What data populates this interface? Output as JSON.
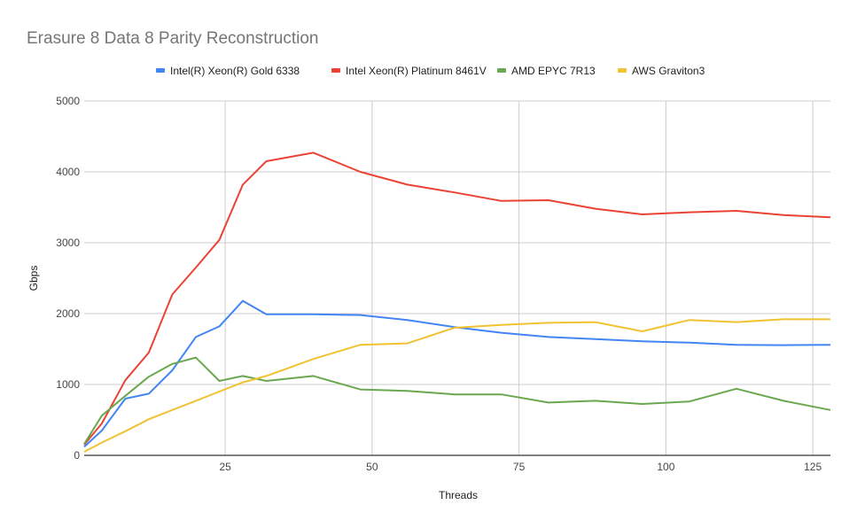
{
  "chart_data": {
    "type": "line",
    "title": "Erasure 8 Data 8 Parity Reconstruction",
    "xlabel": "Threads",
    "ylabel": "Gbps",
    "xlim": [
      1,
      128
    ],
    "ylim": [
      0,
      5000
    ],
    "xticks": [
      25,
      50,
      75,
      100,
      125
    ],
    "yticks": [
      0,
      1000,
      2000,
      3000,
      4000,
      5000
    ],
    "grid": true,
    "legend_position": "top",
    "x": [
      1,
      4,
      8,
      12,
      16,
      20,
      24,
      28,
      32,
      40,
      48,
      56,
      64,
      72,
      80,
      88,
      96,
      104,
      112,
      120,
      128
    ],
    "series": [
      {
        "name": "Intel(R) Xeon(R) Gold 6338",
        "color": "#4285f4",
        "values": [
          120,
          350,
          800,
          870,
          1200,
          1670,
          1820,
          2180,
          1990,
          1990,
          1980,
          1910,
          1810,
          1730,
          1670,
          1640,
          1610,
          1590,
          1560,
          1555,
          1560
        ]
      },
      {
        "name": "Intel Xeon(R) Platinum 8461V",
        "color": "#ea4335",
        "values": [
          150,
          450,
          1060,
          1450,
          2270,
          2650,
          3040,
          3820,
          4150,
          4270,
          4000,
          3820,
          3710,
          3590,
          3600,
          3480,
          3400,
          3430,
          3450,
          3390,
          3360
        ]
      },
      {
        "name": "AMD EPYC 7R13",
        "color": "#6aa84f",
        "values": [
          160,
          560,
          840,
          1110,
          1290,
          1380,
          1050,
          1120,
          1050,
          1120,
          930,
          910,
          860,
          860,
          745,
          770,
          725,
          760,
          940,
          770,
          640
        ]
      },
      {
        "name": "AWS Graviton3",
        "color": "#f1c232",
        "values": [
          50,
          180,
          340,
          510,
          640,
          770,
          900,
          1030,
          1120,
          1360,
          1560,
          1580,
          1800,
          1840,
          1870,
          1880,
          1750,
          1910,
          1880,
          1920,
          1920
        ]
      }
    ]
  }
}
